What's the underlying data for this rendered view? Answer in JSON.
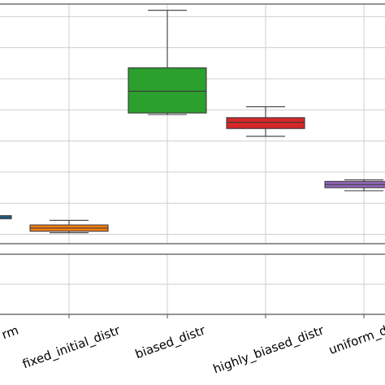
{
  "chart_data": {
    "type": "box",
    "categories": [
      "uniform",
      "fixed_initial_distr",
      "biased_distr",
      "highly_biased_distr",
      "uniform_d"
    ],
    "tick_labels": [
      "rm",
      "fixed_initial_distr",
      "biased_distr",
      "highly_biased_distr",
      "uniform_d"
    ],
    "colors": [
      "#1f77b4",
      "#ff7f0e",
      "#2ca02c",
      "#d62728",
      "#9467bd"
    ],
    "boxes": [
      {
        "min": 0.5,
        "q1": 0.5,
        "median": 0.55,
        "q3": 0.6,
        "max": 0.6
      },
      {
        "min": 0.05,
        "q1": 0.1,
        "median": 0.2,
        "q3": 0.3,
        "max": 0.45
      },
      {
        "min": 3.85,
        "q1": 3.9,
        "median": 4.6,
        "q3": 5.35,
        "max": 7.2
      },
      {
        "min": 3.15,
        "q1": 3.4,
        "median": 3.6,
        "q3": 3.75,
        "max": 4.1
      },
      {
        "min": 1.4,
        "q1": 1.5,
        "median": 1.6,
        "q3": 1.7,
        "max": 1.75
      }
    ],
    "ylim_main": [
      -0.3,
      7.4
    ],
    "grid": true,
    "second_panel": true
  }
}
